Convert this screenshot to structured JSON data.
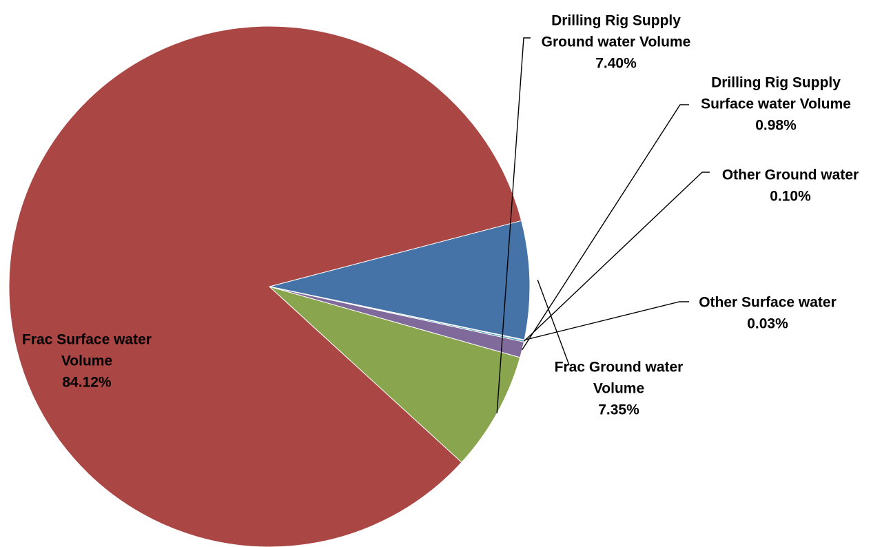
{
  "chart_data": {
    "type": "pie",
    "title": "",
    "slices": [
      {
        "label_lines": [
          "Frac Ground water",
          "Volume"
        ],
        "value": 7.35,
        "value_label": "7.35%",
        "color": "#4572A7"
      },
      {
        "label_lines": [
          "Frac Surface water",
          "Volume"
        ],
        "value": 84.12,
        "value_label": "84.12%",
        "color": "#AA4643"
      },
      {
        "label_lines": [
          "Drilling Rig Supply",
          "Ground water Volume"
        ],
        "value": 7.4,
        "value_label": "7.40%",
        "color": "#89A54E"
      },
      {
        "label_lines": [
          "Drilling Rig Supply",
          "Surface water Volume"
        ],
        "value": 0.98,
        "value_label": "0.98%",
        "color": "#80699B"
      },
      {
        "label_lines": [
          "Other Ground water"
        ],
        "value": 0.1,
        "value_label": "0.10%",
        "color": "#3D96AE"
      },
      {
        "label_lines": [
          "Other Surface water"
        ],
        "value": 0.03,
        "value_label": "0.03%",
        "color": "#DB843D"
      }
    ],
    "legend": "none",
    "labels": "outside-with-leader-lines"
  }
}
